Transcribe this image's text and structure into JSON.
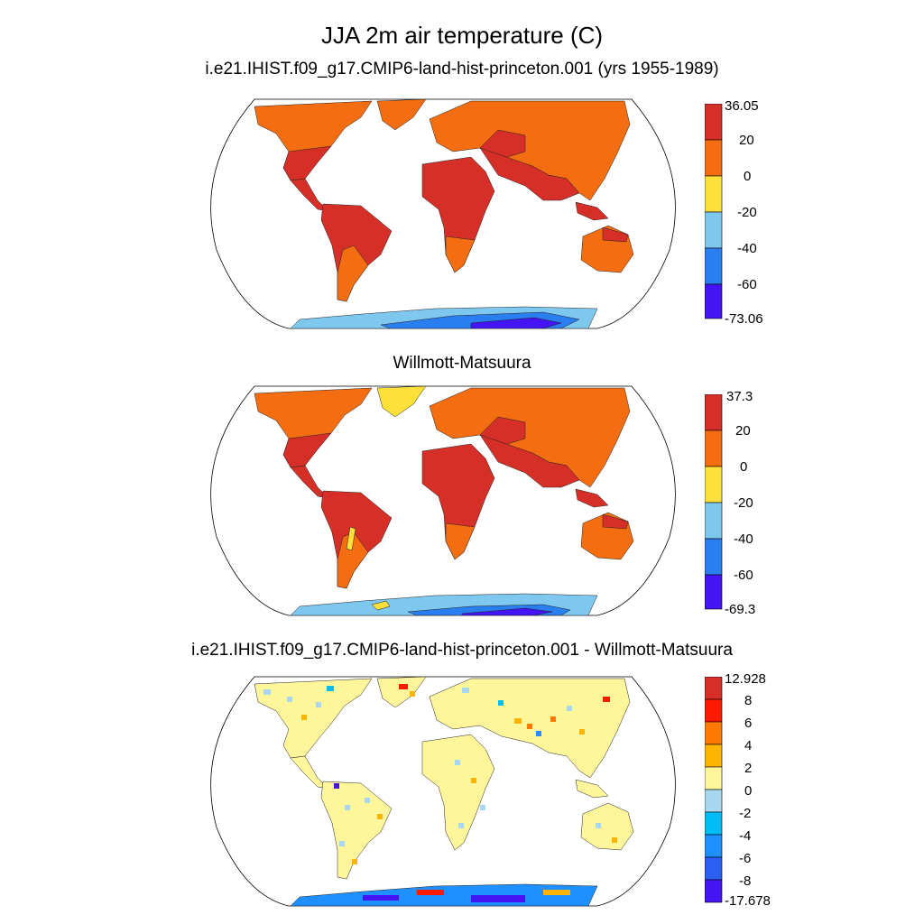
{
  "title": "JJA 2m air temperature (C)",
  "panels": [
    {
      "title": "i.e21.IHIST.f09_g17.CMIP6-land-hist-princeton.001 (yrs 1955-1989)",
      "colorbar": {
        "labels": [
          "36.05",
          "20",
          "0",
          "-20",
          "-40",
          "-60",
          "-73.06"
        ],
        "colors": [
          "#d62f27",
          "#f46d10",
          "#fde03a",
          "#7ec7ef",
          "#2a7ff0",
          "#4414f5"
        ]
      }
    },
    {
      "title": "Willmott-Matsuura",
      "colorbar": {
        "labels": [
          "37.3",
          "20",
          "0",
          "-20",
          "-40",
          "-60",
          "-69.3"
        ],
        "colors": [
          "#d62f27",
          "#f46d10",
          "#fde03a",
          "#7ec7ef",
          "#2a7ff0",
          "#4414f5"
        ]
      }
    },
    {
      "title": "i.e21.IHIST.f09_g17.CMIP6-land-hist-princeton.001 - Willmott-Matsuura",
      "colorbar": {
        "labels": [
          "12.928",
          "8",
          "6",
          "4",
          "2",
          "0",
          "-2",
          "-4",
          "-6",
          "-8",
          "-17.678"
        ],
        "colors": [
          "#d62f27",
          "#ff1a00",
          "#ff7a00",
          "#ffb400",
          "#fff59a",
          "#a8d8f0",
          "#00bcf5",
          "#1e90ff",
          "#2a5ff0",
          "#4414f5"
        ]
      }
    }
  ]
}
